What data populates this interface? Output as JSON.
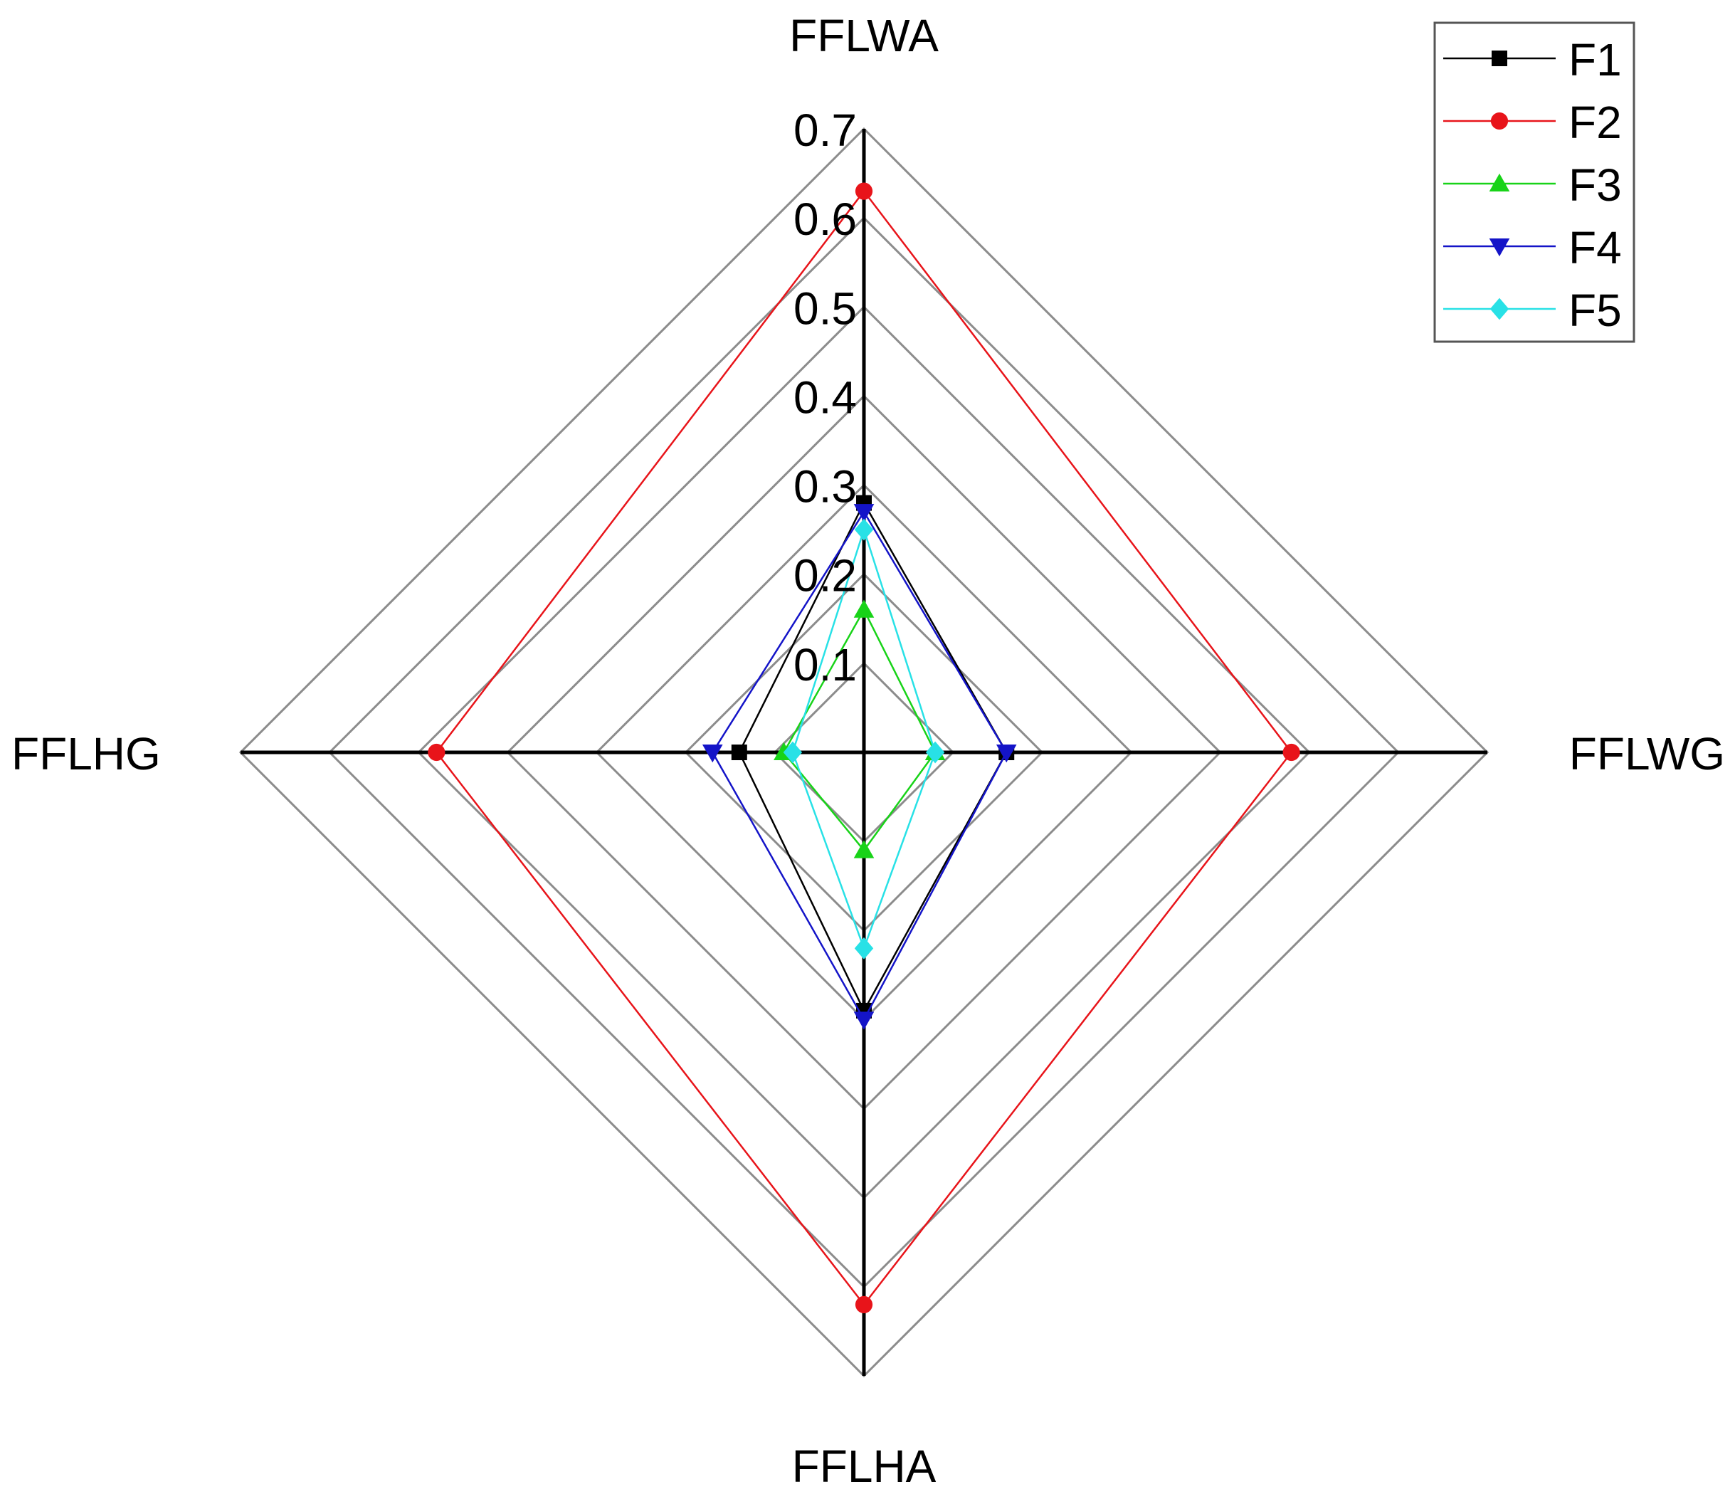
{
  "chart_data": {
    "type": "radar",
    "title": "",
    "axes": [
      "FFLWA",
      "FFLWG",
      "FFLHA",
      "FFLHG"
    ],
    "rlim": [
      0.0,
      0.7
    ],
    "rticks": [
      "0.1",
      "0.2",
      "0.3",
      "0.4",
      "0.5",
      "0.6",
      "0.7"
    ],
    "grid": true,
    "legend_position": "top-right",
    "series": [
      {
        "name": "F1",
        "color": "#000000",
        "marker": "square",
        "values": [
          0.28,
          0.16,
          0.29,
          0.14
        ]
      },
      {
        "name": "F2",
        "color": "#e8141a",
        "marker": "circle",
        "values": [
          0.63,
          0.48,
          0.62,
          0.48
        ]
      },
      {
        "name": "F3",
        "color": "#18d318",
        "marker": "triangle-up",
        "values": [
          0.16,
          0.08,
          0.11,
          0.09
        ]
      },
      {
        "name": "F4",
        "color": "#1414c8",
        "marker": "triangle-down",
        "values": [
          0.27,
          0.16,
          0.3,
          0.17
        ]
      },
      {
        "name": "F5",
        "color": "#28e1e6",
        "marker": "diamond",
        "values": [
          0.25,
          0.08,
          0.22,
          0.08
        ]
      }
    ]
  }
}
